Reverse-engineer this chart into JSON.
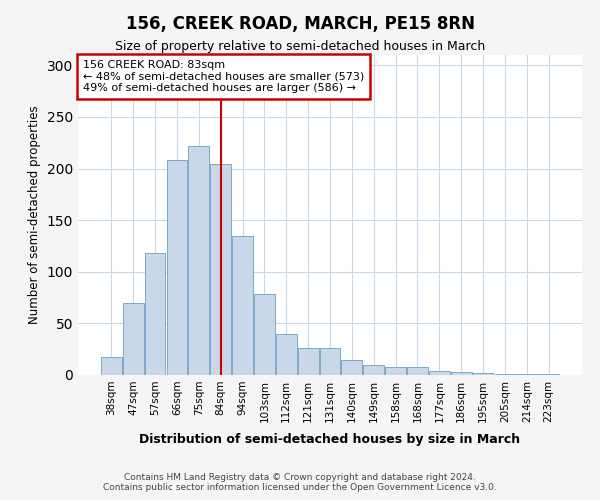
{
  "title": "156, CREEK ROAD, MARCH, PE15 8RN",
  "subtitle": "Size of property relative to semi-detached houses in March",
  "xlabel": "Distribution of semi-detached houses by size in March",
  "ylabel": "Number of semi-detached properties",
  "categories": [
    "38sqm",
    "47sqm",
    "57sqm",
    "66sqm",
    "75sqm",
    "84sqm",
    "94sqm",
    "103sqm",
    "112sqm",
    "121sqm",
    "131sqm",
    "140sqm",
    "149sqm",
    "158sqm",
    "168sqm",
    "177sqm",
    "186sqm",
    "195sqm",
    "205sqm",
    "214sqm",
    "223sqm"
  ],
  "values": [
    17,
    70,
    118,
    208,
    222,
    204,
    135,
    78,
    40,
    26,
    26,
    15,
    10,
    8,
    8,
    4,
    3,
    2,
    1,
    1,
    1
  ],
  "bar_color": "#c8d8e8",
  "bar_edge_color": "#7aaac8",
  "vline_index": 5,
  "annotation_title": "156 CREEK ROAD: 83sqm",
  "annotation_line1": "← 48% of semi-detached houses are smaller (573)",
  "annotation_line2": "49% of semi-detached houses are larger (586) →",
  "annotation_box_facecolor": "#ffffff",
  "annotation_box_edgecolor": "#cc0000",
  "vline_color": "#cc0000",
  "ylim": [
    0,
    310
  ],
  "yticks": [
    0,
    50,
    100,
    150,
    200,
    250,
    300
  ],
  "footer1": "Contains HM Land Registry data © Crown copyright and database right 2024.",
  "footer2": "Contains public sector information licensed under the Open Government Licence v3.0.",
  "bg_color": "#f5f5f5",
  "plot_bg_color": "#ffffff",
  "grid_color": "#c8d8e8"
}
